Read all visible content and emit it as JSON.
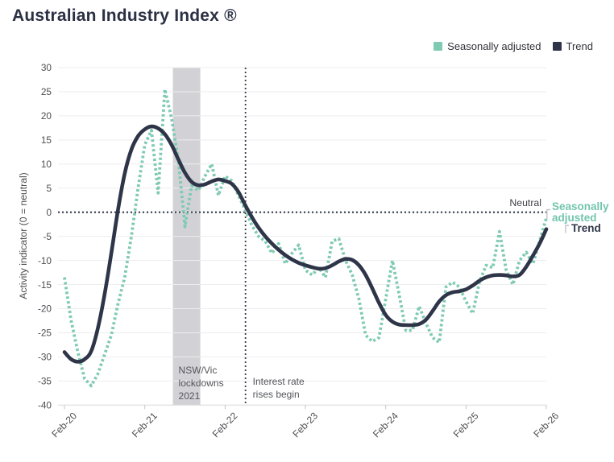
{
  "title": "Australian Industry Index ®",
  "legend": [
    {
      "label": "Seasonally adjusted",
      "color": "#7ecab3"
    },
    {
      "label": "Trend",
      "color": "#2e3548"
    }
  ],
  "chart_data": {
    "type": "line",
    "title": "Australian Industry Index ®",
    "ylabel": "Activity indicator (0 = neutral)",
    "ylim": [
      -40,
      30
    ],
    "ytick_step": 5,
    "x_tick_labels": [
      "Feb-20",
      "Feb-21",
      "Feb-22",
      "Feb-23",
      "Feb-24",
      "Feb-25",
      "Feb-26"
    ],
    "months_per_tick": 12,
    "grid": "horizontal",
    "legend_position": "top-right",
    "colors": {
      "seasonally_adjusted": "#7ecab3",
      "trend": "#2e3548",
      "band": "#d2d2d6",
      "gridline": "#ededef",
      "axis_line": "#d7d7d9",
      "tick_text": "#4d4e52",
      "annotation_text": "#54555b",
      "neutral_text": "#3f4046",
      "dotted_line": "#373c4b",
      "bracket": "#c4c4c8"
    },
    "series": [
      {
        "name": "Seasonally adjusted",
        "color": "#7ecab3",
        "line_style": "dashed",
        "values": [
          -13.5,
          -22.5,
          -29,
          -34.5,
          -36,
          -33.5,
          -29.5,
          -25.5,
          -19,
          -13.5,
          -5,
          5,
          14,
          17,
          4,
          25.5,
          19.5,
          11,
          -3,
          5.5,
          4.5,
          7.5,
          10,
          3.5,
          7.5,
          6.5,
          3.5,
          0.5,
          -2.7,
          -5,
          -6,
          -8.5,
          -6.5,
          -10.7,
          -8.5,
          -6.8,
          -12,
          -13,
          -11.5,
          -13.5,
          -6,
          -5.5,
          -10,
          -13,
          -18,
          -25.5,
          -26.8,
          -26,
          -18,
          -10,
          -17,
          -24.5,
          -24.5,
          -19.5,
          -23,
          -26,
          -27,
          -15.5,
          -14.5,
          -15.5,
          -18.5,
          -21,
          -14.5,
          -11,
          -11.5,
          -4,
          -12,
          -15,
          -10,
          -8.3,
          -10.7,
          -6,
          -1.2
        ]
      },
      {
        "name": "Trend",
        "color": "#2e3548",
        "line_style": "solid",
        "values": [
          -29,
          -30.5,
          -31,
          -30.5,
          -28.8,
          -24,
          -17,
          -8.5,
          0.5,
          8,
          13,
          15.8,
          17.2,
          17.8,
          17.4,
          16.2,
          14,
          11,
          8.2,
          6.3,
          5.6,
          5.8,
          6.4,
          6.8,
          6.5,
          5.9,
          4.2,
          1.5,
          -1,
          -3.2,
          -5,
          -6.5,
          -7.8,
          -8.9,
          -9.8,
          -10.5,
          -11,
          -11.4,
          -11.7,
          -11.6,
          -11,
          -10.2,
          -9.7,
          -9.9,
          -11,
          -13,
          -15.8,
          -18.8,
          -21.3,
          -22.7,
          -23.3,
          -23.4,
          -23.4,
          -23.2,
          -22.3,
          -20.5,
          -18.5,
          -17.2,
          -16.6,
          -16.4,
          -16,
          -15.2,
          -14.2,
          -13.5,
          -13.1,
          -13,
          -13.1,
          -13.3,
          -13,
          -11.3,
          -9,
          -6.5,
          -3.5
        ]
      }
    ],
    "annotations": {
      "lockdown_band": {
        "label": "NSW/Vic lockdowns 2021",
        "label_lines": [
          "NSW/Vic",
          "lockdowns",
          "2021"
        ],
        "start_month_index": 16.2,
        "end_month_index": 20.3
      },
      "rate_rise_line": {
        "label": "Interest rate rises begin",
        "label_lines": [
          "Interest rate",
          "rises begin"
        ],
        "month_index": 27.05
      },
      "neutral_line": {
        "label": "Neutral",
        "value": 0
      }
    },
    "end_labels": [
      {
        "text": "Seasonally adjusted",
        "color": "#72c5ac"
      },
      {
        "text": "Trend",
        "color": "#2e3548"
      }
    ]
  }
}
